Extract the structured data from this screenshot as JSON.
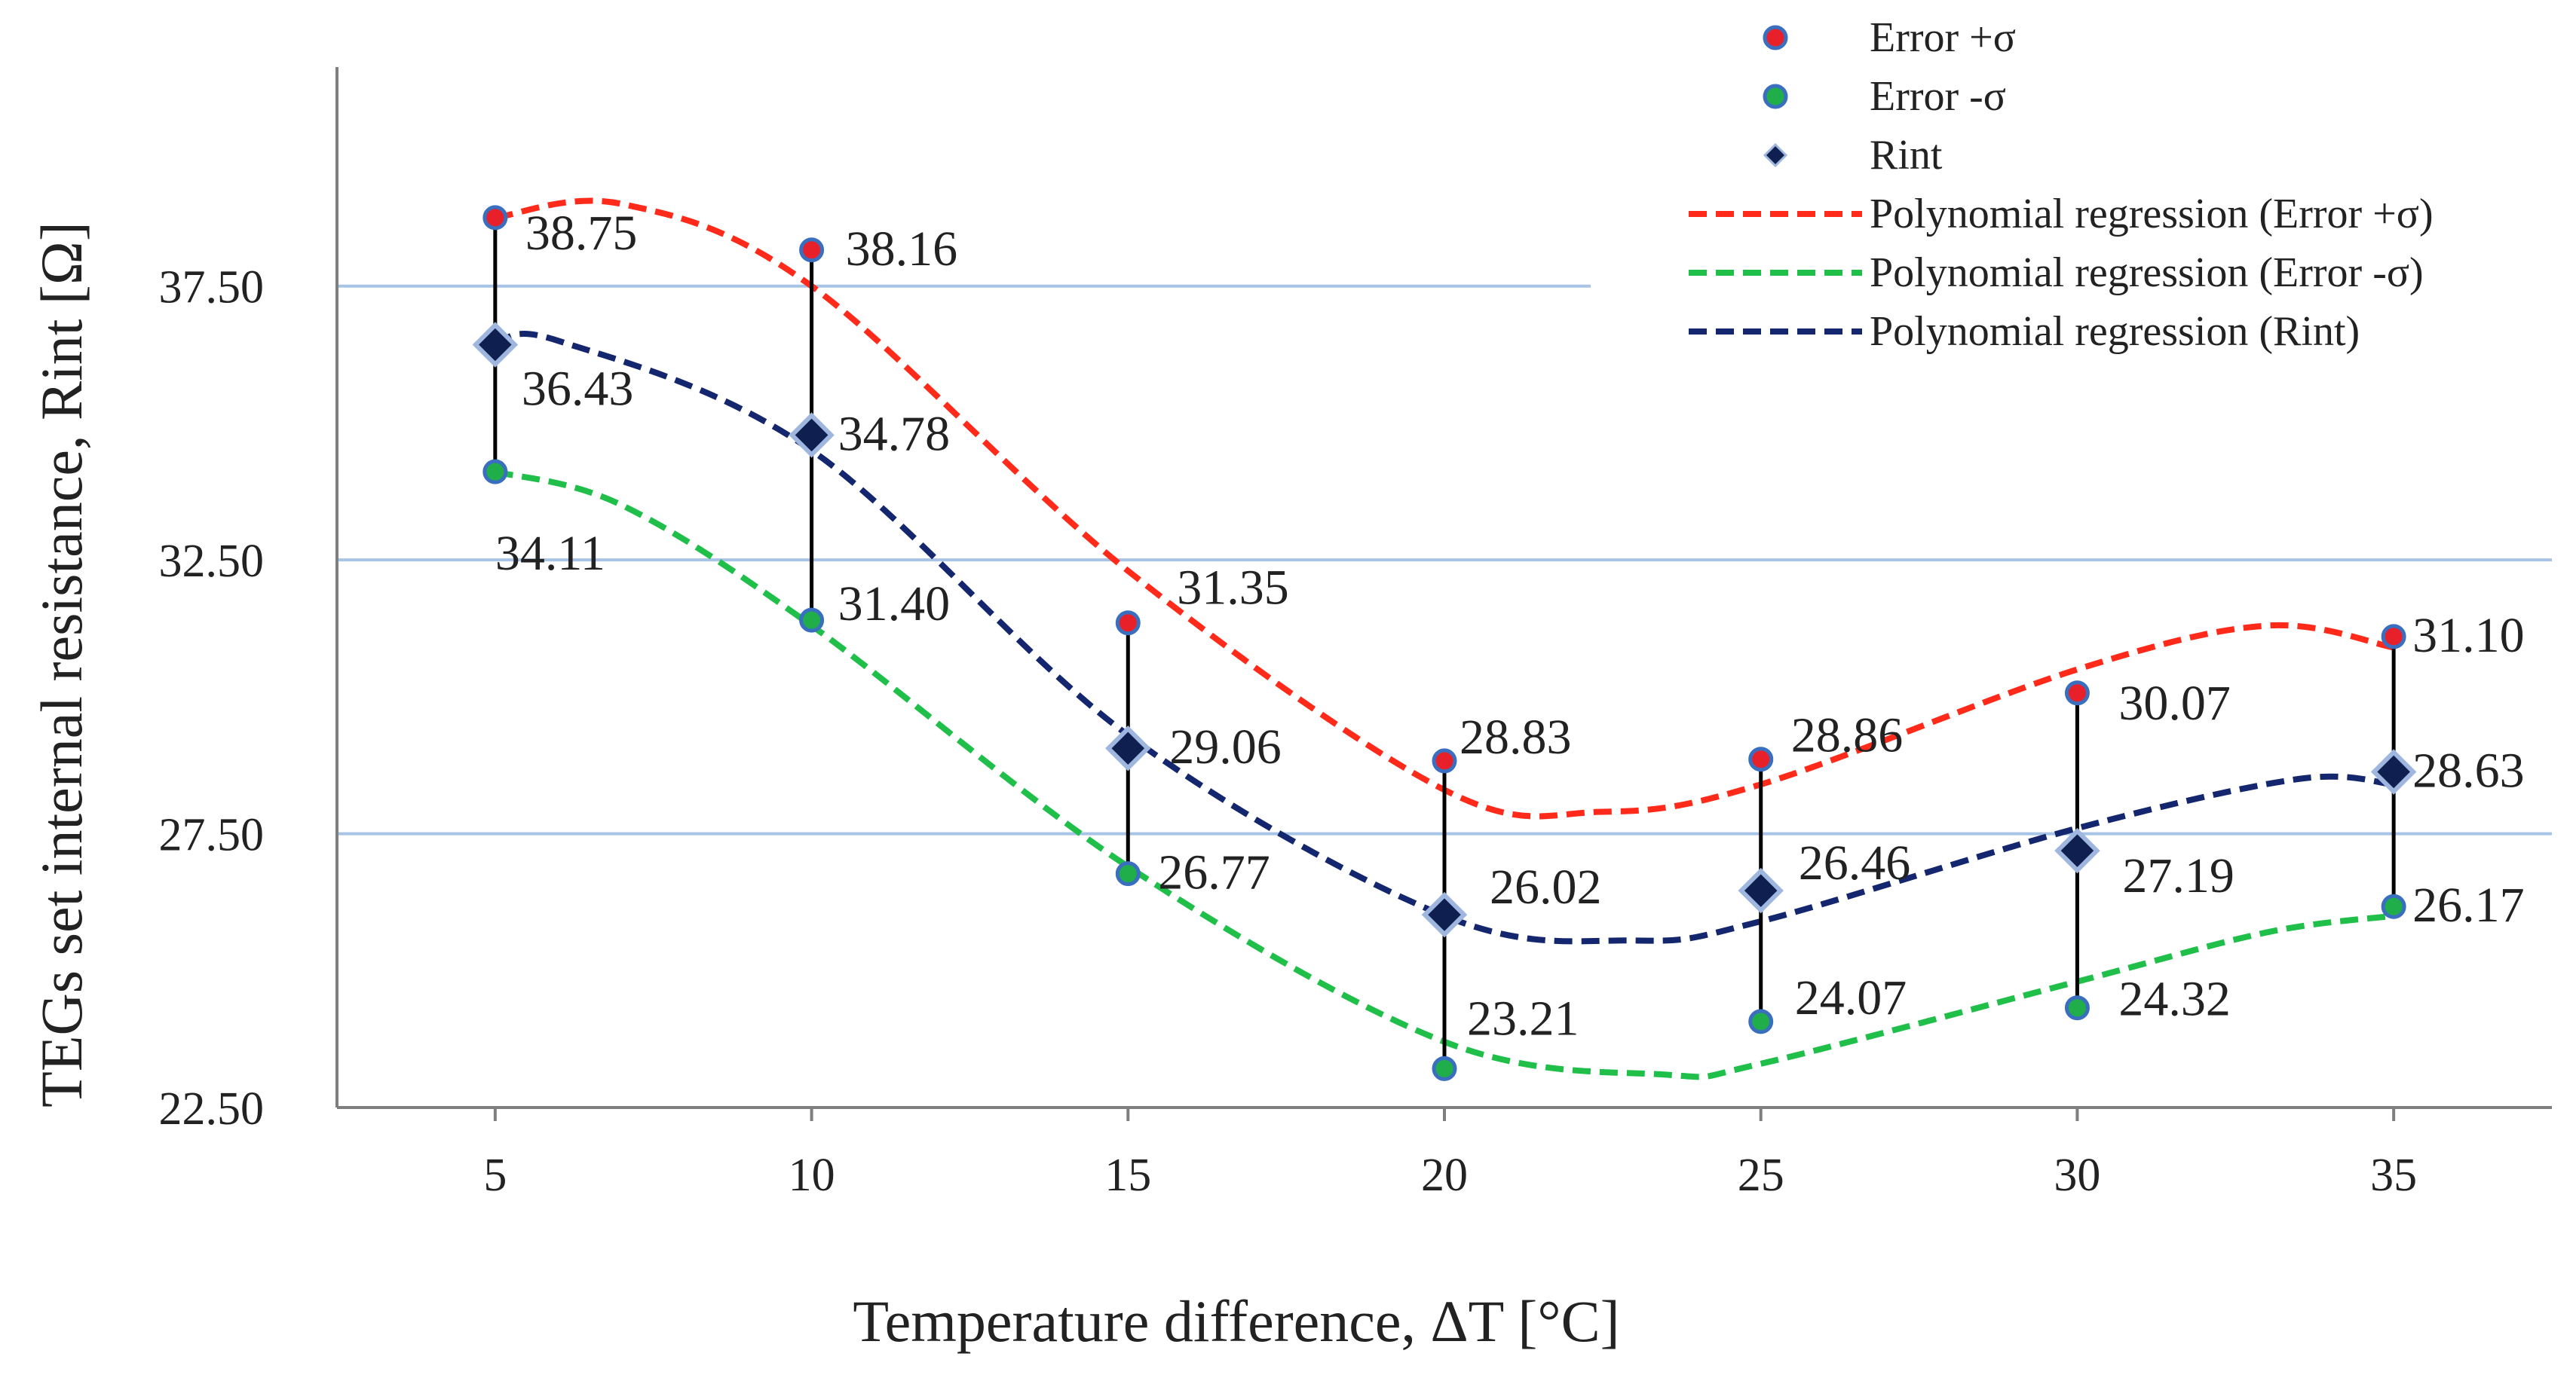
{
  "chart_data": {
    "type": "scatter",
    "title": "",
    "xlabel": "Temperature difference, ΔT [°C]",
    "ylabel": "TEGs set internal resistance, Rint [Ω]",
    "x": [
      5,
      10,
      15,
      20,
      25,
      30,
      35
    ],
    "x_tick_labels": [
      "5",
      "10",
      "15",
      "20",
      "25",
      "30",
      "35"
    ],
    "xlim": [
      2.5,
      37.5
    ],
    "ylim": [
      22.5,
      41.5
    ],
    "y_ticks": [
      22.5,
      27.5,
      32.5,
      37.5
    ],
    "y_tick_labels": [
      "22.50",
      "27.50",
      "32.50",
      "37.50"
    ],
    "gridlines": "horizontal",
    "legend_position": "top-right",
    "series": [
      {
        "name": "Error +σ",
        "marker": "circle",
        "fill_color": "#e8202a",
        "edge_color": "#3a6fbf",
        "values": [
          38.75,
          38.16,
          31.35,
          28.83,
          28.86,
          30.07,
          31.1
        ],
        "labels": [
          "38.75",
          "38.16",
          "31.35",
          "28.83",
          "28.86",
          "30.07",
          "31.10"
        ]
      },
      {
        "name": "Error -σ",
        "marker": "circle",
        "fill_color": "#1fae4a",
        "edge_color": "#3a6fbf",
        "values": [
          34.11,
          31.4,
          26.77,
          23.21,
          24.07,
          24.32,
          26.17
        ],
        "labels": [
          "34.11",
          "31.40",
          "26.77",
          "23.21",
          "24.07",
          "24.32",
          "26.17"
        ]
      },
      {
        "name": "Rint",
        "marker": "diamond",
        "fill_color": "#0f1f4f",
        "edge_color": "#9fb6df",
        "values": [
          36.43,
          34.78,
          29.06,
          26.02,
          26.46,
          27.19,
          28.63
        ],
        "labels": [
          "36.43",
          "34.78",
          "29.06",
          "26.02",
          "26.46",
          "27.19",
          "28.63"
        ]
      }
    ],
    "trendlines": [
      {
        "name": "Polynomial regression (Error +σ)",
        "type": "polynomial",
        "of": "Error +σ",
        "color": "#ff2a1a",
        "style": "dashed",
        "x": [
          5,
          7,
          10,
          15,
          20,
          22.5,
          25,
          30,
          33,
          35
        ],
        "y": [
          38.75,
          39.0,
          37.5,
          32.3,
          28.3,
          27.9,
          28.4,
          30.5,
          31.3,
          30.9
        ]
      },
      {
        "name": "Polynomial regression (Error -σ)",
        "type": "polynomial",
        "of": "Error -σ",
        "color": "#1fbf4a",
        "style": "dashed",
        "x": [
          5,
          7,
          10,
          15,
          20,
          23.5,
          25,
          30,
          33,
          35
        ],
        "y": [
          34.11,
          33.5,
          31.3,
          26.9,
          23.7,
          23.1,
          23.3,
          24.8,
          25.7,
          26.0
        ]
      },
      {
        "name": "Polynomial regression (Rint)",
        "type": "polynomial",
        "of": "Rint",
        "color": "#14276e",
        "style": "dashed",
        "x": [
          5,
          6,
          10,
          15,
          20,
          23,
          25,
          30,
          33.5,
          35
        ],
        "y": [
          36.43,
          36.5,
          34.5,
          29.3,
          26.0,
          25.55,
          25.9,
          27.6,
          28.5,
          28.4
        ]
      }
    ],
    "legend": [
      "Error +σ",
      "Error -σ",
      "Rint",
      "Polynomial regression (Error +σ)",
      "Polynomial regression (Error -σ)",
      "Polynomial regression (Rint)"
    ],
    "colors": {
      "axis": "#7f7f7f",
      "grid": "#a7c3e6",
      "error_bar": "#000000",
      "text": "#222222"
    }
  }
}
